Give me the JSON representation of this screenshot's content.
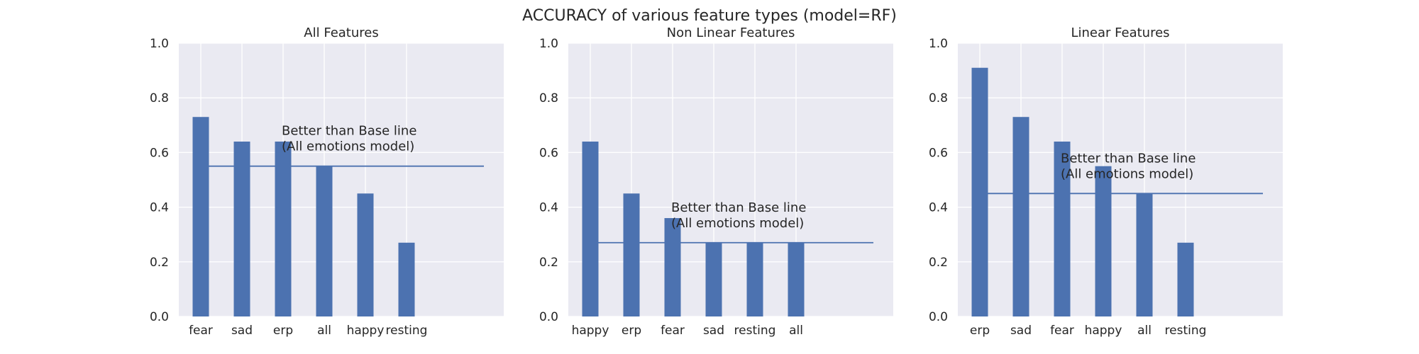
{
  "suptitle": "ACCURACY of various feature types (model=RF)",
  "colors": {
    "bar": "#4c72b0",
    "baseline": "#4c72b0",
    "panel_bg": "#eaeaf2",
    "grid": "#ffffff",
    "text": "#262626"
  },
  "chart_data": [
    {
      "type": "bar",
      "title": "All Features",
      "categories": [
        "fear",
        "sad",
        "erp",
        "all",
        "happy",
        "resting"
      ],
      "values": [
        0.73,
        0.64,
        0.64,
        0.55,
        0.45,
        0.27
      ],
      "baseline": 0.55,
      "annotation": [
        "Better than Base line",
        "(All emotions model)"
      ],
      "ylim": [
        0,
        1
      ],
      "yticks": [
        "0.0",
        "0.2",
        "0.4",
        "0.6",
        "0.8",
        "1.0"
      ],
      "grid": true
    },
    {
      "type": "bar",
      "title": "Non Linear Features",
      "categories": [
        "happy",
        "erp",
        "fear",
        "sad",
        "resting",
        "all"
      ],
      "values": [
        0.64,
        0.45,
        0.36,
        0.27,
        0.27,
        0.27
      ],
      "baseline": 0.27,
      "annotation": [
        "Better than Base line",
        "(All emotions model)"
      ],
      "ylim": [
        0,
        1
      ],
      "yticks": [
        "0.0",
        "0.2",
        "0.4",
        "0.6",
        "0.8",
        "1.0"
      ],
      "grid": true
    },
    {
      "type": "bar",
      "title": "Linear Features",
      "categories": [
        "erp",
        "sad",
        "fear",
        "happy",
        "all",
        "resting"
      ],
      "values": [
        0.91,
        0.73,
        0.64,
        0.55,
        0.45,
        0.27
      ],
      "baseline": 0.45,
      "annotation": [
        "Better than Base line",
        "(All emotions model)"
      ],
      "ylim": [
        0,
        1
      ],
      "yticks": [
        "0.0",
        "0.2",
        "0.4",
        "0.6",
        "0.8",
        "1.0"
      ],
      "grid": true
    }
  ]
}
